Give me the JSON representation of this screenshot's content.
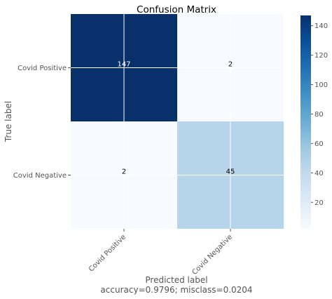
{
  "chart_data": {
    "type": "heatmap",
    "title": "Confusion Matrix",
    "xlabel": "Predicted label",
    "ylabel": "True label",
    "x_categories": [
      "Covid Positive",
      "Covid Negative"
    ],
    "y_categories": [
      "Covid Positive",
      "Covid Negative"
    ],
    "values": [
      [
        147,
        2
      ],
      [
        2,
        45
      ]
    ],
    "value_range": [
      2,
      147
    ],
    "colormap": "Blues",
    "colorbar": {
      "ticks": [
        20,
        40,
        60,
        80,
        100,
        120,
        140
      ]
    },
    "grid": true,
    "footer": "accuracy=0.9796; misclass=0.0204"
  }
}
